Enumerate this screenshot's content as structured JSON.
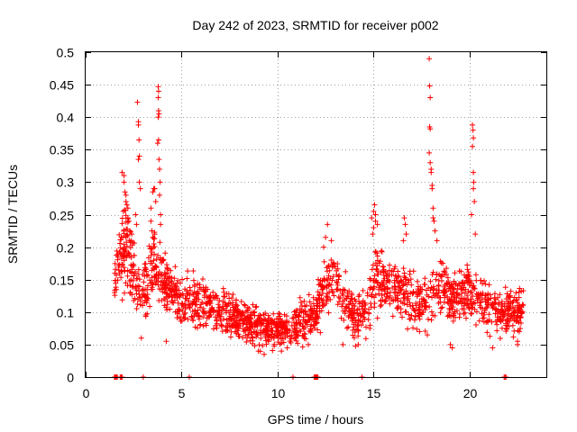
{
  "chart_data": {
    "type": "scatter",
    "title": "Day 242 of 2023, SRMTID for receiver p002",
    "xlabel": "GPS time / hours",
    "ylabel": "SRMTID / TECUs",
    "xlim": [
      0,
      24
    ],
    "ylim": [
      0,
      0.5
    ],
    "grid": true,
    "marker": "+",
    "series_color": "#ff0000",
    "x_ticks": [
      {
        "value": 0,
        "label": "0"
      },
      {
        "value": 5,
        "label": "5"
      },
      {
        "value": 10,
        "label": "10"
      },
      {
        "value": 15,
        "label": "15"
      },
      {
        "value": 20,
        "label": "20"
      }
    ],
    "y_ticks": [
      {
        "value": 0,
        "label": "0"
      },
      {
        "value": 0.05,
        "label": "0.05"
      },
      {
        "value": 0.1,
        "label": "0.1"
      },
      {
        "value": 0.15,
        "label": "0.15"
      },
      {
        "value": 0.2,
        "label": "0.2"
      },
      {
        "value": 0.25,
        "label": "0.25"
      },
      {
        "value": 0.3,
        "label": "0.3"
      },
      {
        "value": 0.35,
        "label": "0.35"
      },
      {
        "value": 0.4,
        "label": "0.4"
      },
      {
        "value": 0.45,
        "label": "0.45"
      },
      {
        "value": 0.5,
        "label": "0.5"
      }
    ],
    "envelope": {
      "hours": [
        1.5,
        1.8,
        2.0,
        2.4,
        2.8,
        3.2,
        3.6,
        4.0,
        4.5,
        5.0,
        5.5,
        6.0,
        6.5,
        7.0,
        7.5,
        8.0,
        8.5,
        9.0,
        9.5,
        10.0,
        10.5,
        11.0,
        11.5,
        12.0,
        12.5,
        13.0,
        13.5,
        14.0,
        14.5,
        15.0,
        15.5,
        16.0,
        16.5,
        17.0,
        17.5,
        18.0,
        18.5,
        19.0,
        19.5,
        20.0,
        20.5,
        21.0,
        21.5,
        22.0,
        22.5,
        22.8
      ],
      "mean": [
        0.15,
        0.18,
        0.2,
        0.16,
        0.13,
        0.14,
        0.17,
        0.15,
        0.13,
        0.12,
        0.12,
        0.115,
        0.11,
        0.1,
        0.095,
        0.09,
        0.085,
        0.08,
        0.075,
        0.075,
        0.075,
        0.08,
        0.09,
        0.1,
        0.14,
        0.15,
        0.12,
        0.09,
        0.1,
        0.14,
        0.15,
        0.14,
        0.13,
        0.12,
        0.11,
        0.13,
        0.14,
        0.12,
        0.13,
        0.13,
        0.12,
        0.11,
        0.1,
        0.1,
        0.1,
        0.11
      ],
      "spread": [
        0.03,
        0.05,
        0.06,
        0.05,
        0.04,
        0.05,
        0.05,
        0.04,
        0.035,
        0.035,
        0.035,
        0.035,
        0.03,
        0.03,
        0.03,
        0.028,
        0.025,
        0.025,
        0.025,
        0.025,
        0.025,
        0.025,
        0.028,
        0.03,
        0.04,
        0.04,
        0.035,
        0.03,
        0.035,
        0.045,
        0.04,
        0.035,
        0.035,
        0.035,
        0.035,
        0.04,
        0.04,
        0.035,
        0.035,
        0.035,
        0.035,
        0.035,
        0.035,
        0.03,
        0.03,
        0.03
      ],
      "points_per_hour": 90
    },
    "spike_points": [
      {
        "x": 1.9,
        "y": 0.315
      },
      {
        "x": 2.0,
        "y": 0.31
      },
      {
        "x": 2.0,
        "y": 0.3
      },
      {
        "x": 2.05,
        "y": 0.285
      },
      {
        "x": 2.1,
        "y": 0.28
      },
      {
        "x": 2.1,
        "y": 0.27
      },
      {
        "x": 2.15,
        "y": 0.265
      },
      {
        "x": 2.2,
        "y": 0.26
      },
      {
        "x": 2.2,
        "y": 0.245
      },
      {
        "x": 2.25,
        "y": 0.24
      },
      {
        "x": 2.3,
        "y": 0.225
      },
      {
        "x": 2.4,
        "y": 0.22
      },
      {
        "x": 2.7,
        "y": 0.423
      },
      {
        "x": 2.75,
        "y": 0.393
      },
      {
        "x": 2.75,
        "y": 0.388
      },
      {
        "x": 2.78,
        "y": 0.365
      },
      {
        "x": 2.8,
        "y": 0.34
      },
      {
        "x": 2.75,
        "y": 0.335
      },
      {
        "x": 2.8,
        "y": 0.3
      },
      {
        "x": 2.85,
        "y": 0.29
      },
      {
        "x": 2.6,
        "y": 0.25
      },
      {
        "x": 2.65,
        "y": 0.235
      },
      {
        "x": 3.4,
        "y": 0.26
      },
      {
        "x": 3.5,
        "y": 0.285
      },
      {
        "x": 3.55,
        "y": 0.29
      },
      {
        "x": 3.6,
        "y": 0.29
      },
      {
        "x": 3.65,
        "y": 0.27
      },
      {
        "x": 3.4,
        "y": 0.24
      },
      {
        "x": 3.45,
        "y": 0.225
      },
      {
        "x": 3.5,
        "y": 0.215
      },
      {
        "x": 3.55,
        "y": 0.205
      },
      {
        "x": 3.6,
        "y": 0.22
      },
      {
        "x": 3.78,
        "y": 0.447
      },
      {
        "x": 3.8,
        "y": 0.44
      },
      {
        "x": 3.78,
        "y": 0.43
      },
      {
        "x": 3.8,
        "y": 0.41
      },
      {
        "x": 3.82,
        "y": 0.405
      },
      {
        "x": 3.78,
        "y": 0.4
      },
      {
        "x": 3.8,
        "y": 0.365
      },
      {
        "x": 3.75,
        "y": 0.36
      },
      {
        "x": 3.82,
        "y": 0.335
      },
      {
        "x": 3.85,
        "y": 0.32
      },
      {
        "x": 3.88,
        "y": 0.3
      },
      {
        "x": 3.85,
        "y": 0.28
      },
      {
        "x": 3.9,
        "y": 0.25
      },
      {
        "x": 3.9,
        "y": 0.235
      },
      {
        "x": 12.6,
        "y": 0.235
      },
      {
        "x": 12.5,
        "y": 0.215
      },
      {
        "x": 12.8,
        "y": 0.21
      },
      {
        "x": 12.4,
        "y": 0.2
      },
      {
        "x": 14.9,
        "y": 0.245
      },
      {
        "x": 15.0,
        "y": 0.255
      },
      {
        "x": 15.05,
        "y": 0.265
      },
      {
        "x": 15.1,
        "y": 0.25
      },
      {
        "x": 15.1,
        "y": 0.24
      },
      {
        "x": 15.2,
        "y": 0.235
      },
      {
        "x": 15.0,
        "y": 0.23
      },
      {
        "x": 14.95,
        "y": 0.22
      },
      {
        "x": 16.6,
        "y": 0.245
      },
      {
        "x": 16.65,
        "y": 0.235
      },
      {
        "x": 16.7,
        "y": 0.22
      },
      {
        "x": 16.55,
        "y": 0.21
      },
      {
        "x": 17.9,
        "y": 0.49
      },
      {
        "x": 17.92,
        "y": 0.448
      },
      {
        "x": 17.95,
        "y": 0.43
      },
      {
        "x": 17.92,
        "y": 0.385
      },
      {
        "x": 17.95,
        "y": 0.382
      },
      {
        "x": 17.9,
        "y": 0.345
      },
      {
        "x": 17.95,
        "y": 0.33
      },
      {
        "x": 18.0,
        "y": 0.32
      },
      {
        "x": 18.0,
        "y": 0.315
      },
      {
        "x": 18.05,
        "y": 0.295
      },
      {
        "x": 18.05,
        "y": 0.29
      },
      {
        "x": 18.1,
        "y": 0.26
      },
      {
        "x": 18.1,
        "y": 0.245
      },
      {
        "x": 18.15,
        "y": 0.24
      },
      {
        "x": 18.2,
        "y": 0.225
      },
      {
        "x": 18.3,
        "y": 0.21
      },
      {
        "x": 20.15,
        "y": 0.388
      },
      {
        "x": 20.18,
        "y": 0.38
      },
      {
        "x": 20.2,
        "y": 0.368
      },
      {
        "x": 20.15,
        "y": 0.355
      },
      {
        "x": 20.2,
        "y": 0.315
      },
      {
        "x": 20.22,
        "y": 0.3
      },
      {
        "x": 20.2,
        "y": 0.29
      },
      {
        "x": 20.25,
        "y": 0.27
      },
      {
        "x": 20.1,
        "y": 0.25
      },
      {
        "x": 20.3,
        "y": 0.22
      },
      {
        "x": 2.9,
        "y": 0.06
      },
      {
        "x": 4.2,
        "y": 0.055
      },
      {
        "x": 9.0,
        "y": 0.04
      },
      {
        "x": 9.3,
        "y": 0.035
      },
      {
        "x": 10.2,
        "y": 0.04
      },
      {
        "x": 10.5,
        "y": 0.045
      },
      {
        "x": 11.6,
        "y": 0.05
      },
      {
        "x": 13.4,
        "y": 0.05
      },
      {
        "x": 14.2,
        "y": 0.05
      },
      {
        "x": 17.8,
        "y": 0.065
      },
      {
        "x": 19.0,
        "y": 0.05
      },
      {
        "x": 19.1,
        "y": 0.045
      },
      {
        "x": 21.2,
        "y": 0.045
      },
      {
        "x": 22.5,
        "y": 0.055
      },
      {
        "x": 22.5,
        "y": 0.05
      }
    ],
    "zero_points": [
      1.5,
      1.55,
      1.6,
      1.65,
      1.8,
      1.85,
      1.9,
      3.0,
      5.4,
      10.8,
      11.9,
      11.95,
      12.0,
      12.05,
      12.1,
      14.4,
      21.8,
      21.85,
      21.9
    ]
  }
}
